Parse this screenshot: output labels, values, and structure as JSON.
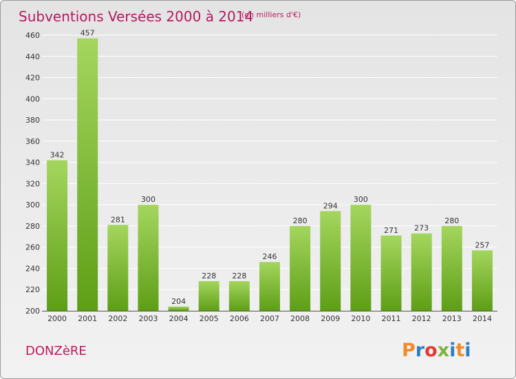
{
  "chart_data": {
    "type": "bar",
    "title": "Subventions Versées 2000 à 2014",
    "subtitle": "(en milliers d'€)",
    "categories": [
      "2000",
      "2001",
      "2002",
      "2003",
      "2004",
      "2005",
      "2006",
      "2007",
      "2008",
      "2009",
      "2010",
      "2011",
      "2012",
      "2013",
      "2014"
    ],
    "values": [
      342,
      457,
      281,
      300,
      204,
      228,
      228,
      246,
      280,
      294,
      300,
      271,
      273,
      280,
      257
    ],
    "ylim": [
      200,
      460
    ],
    "yticks": [
      200,
      220,
      240,
      260,
      280,
      300,
      320,
      340,
      360,
      380,
      400,
      420,
      440,
      460
    ],
    "xlabel": "",
    "ylabel": "",
    "grid": true
  },
  "place_name": "DONZèRE",
  "logo": {
    "text": "Proxiti",
    "letters": [
      "P",
      "r",
      "o",
      "x",
      "i",
      "t",
      "i"
    ],
    "letter_colors": [
      "#f28c28",
      "#2a7fc9",
      "#e53935",
      "#7cb342",
      "#2a7fc9",
      "#f28c28",
      "#2a7fc9"
    ]
  },
  "colors": {
    "title": "#b5195e",
    "bar_light": "#a4d65e",
    "bar_dark": "#5e9e16",
    "grid": "#ffffff"
  }
}
